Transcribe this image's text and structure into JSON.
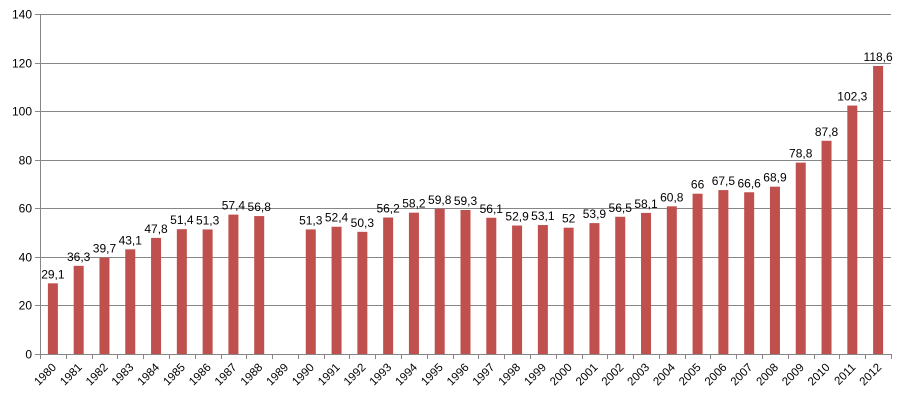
{
  "chart_data": {
    "type": "bar",
    "title": "",
    "xlabel": "",
    "ylabel": "",
    "ylim": [
      0,
      140
    ],
    "yticks": [
      0,
      20,
      40,
      60,
      80,
      100,
      120,
      140
    ],
    "grid": true,
    "legend": "none",
    "bar_color": "#c0504d",
    "categories": [
      "1980",
      "1981",
      "1982",
      "1983",
      "1984",
      "1985",
      "1986",
      "1987",
      "1988",
      "1989",
      "1990",
      "1991",
      "1992",
      "1993",
      "1994",
      "1995",
      "1996",
      "1997",
      "1998",
      "1999",
      "2000",
      "2001",
      "2002",
      "2003",
      "2004",
      "2005",
      "2006",
      "2007",
      "2008",
      "2009",
      "2010",
      "2011",
      "2012"
    ],
    "values": [
      29.1,
      36.3,
      39.7,
      43.1,
      47.8,
      51.4,
      51.3,
      57.4,
      56.8,
      null,
      51.3,
      52.4,
      50.3,
      56.2,
      58.2,
      59.8,
      59.3,
      56.1,
      52.9,
      53.1,
      52,
      53.9,
      56.5,
      58.1,
      60.8,
      66,
      67.5,
      66.6,
      68.9,
      78.8,
      87.8,
      102.3,
      118.6
    ],
    "data_labels": [
      "29,1",
      "36,3",
      "39,7",
      "43,1",
      "47,8",
      "51,4",
      "51,3",
      "57,4",
      "56,8",
      "",
      "51,3",
      "52,4",
      "50,3",
      "56,2",
      "58,2",
      "59,8",
      "59,3",
      "56,1",
      "52,9",
      "53,1",
      "52",
      "53,9",
      "56,5",
      "58,1",
      "60,8",
      "66",
      "67,5",
      "66,6",
      "68,9",
      "78,8",
      "87,8",
      "102,3",
      "118,6"
    ]
  }
}
